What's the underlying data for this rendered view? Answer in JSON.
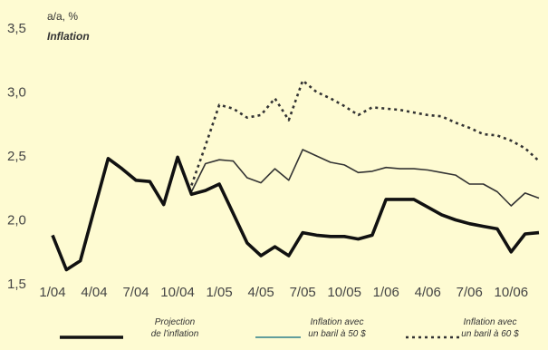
{
  "chart_data": {
    "type": "line",
    "ylabel_unit": "a/a, %",
    "ylabel": "Inflation",
    "ylim": [
      1.5,
      3.5
    ],
    "y_ticks": [
      "3,5",
      "3,0",
      "2,5",
      "2,0",
      "1,5"
    ],
    "x_ticks": [
      "1/04",
      "4/04",
      "7/04",
      "10/04",
      "1/05",
      "4/05",
      "7/05",
      "10/05",
      "1/06",
      "4/06",
      "7/06",
      "10/06"
    ],
    "grid": false,
    "legend_position": "bottom",
    "series": [
      {
        "name": "Projection de l'inflation",
        "legend_lines": [
          "Projection",
          "de l'inflation"
        ],
        "color": "#111111",
        "style": "solid-thick",
        "x": [
          0,
          1,
          2,
          3,
          4,
          5,
          6,
          7,
          8,
          9,
          10,
          11,
          12,
          13,
          14,
          15,
          16,
          17,
          18,
          19,
          20,
          21,
          22,
          23,
          24,
          25,
          26,
          27,
          28,
          29,
          30,
          31,
          32,
          33,
          34,
          35
        ],
        "values": [
          1.88,
          1.61,
          1.68,
          2.08,
          2.48,
          2.4,
          2.31,
          2.3,
          2.12,
          2.49,
          2.2,
          2.23,
          2.28,
          2.05,
          1.82,
          1.72,
          1.79,
          1.72,
          1.9,
          1.88,
          1.87,
          1.87,
          1.85,
          1.88,
          2.16,
          2.16,
          2.16,
          2.1,
          2.04,
          2.0,
          1.97,
          1.95,
          1.93,
          1.75,
          1.89,
          1.9
        ]
      },
      {
        "name": "Inflation avec un baril à 50 $",
        "legend_lines": [
          "Inflation avec",
          "un baril à 50 $"
        ],
        "color": "#333333",
        "style": "solid-thin",
        "x": [
          10,
          11,
          12,
          13,
          14,
          15,
          16,
          17,
          18,
          19,
          20,
          21,
          22,
          23,
          24,
          25,
          26,
          27,
          28,
          29,
          30,
          31,
          32,
          33,
          34,
          35
        ],
        "values": [
          2.22,
          2.44,
          2.47,
          2.46,
          2.33,
          2.29,
          2.4,
          2.31,
          2.55,
          2.5,
          2.45,
          2.43,
          2.37,
          2.38,
          2.41,
          2.4,
          2.4,
          2.39,
          2.37,
          2.35,
          2.28,
          2.28,
          2.22,
          2.11,
          2.21,
          2.17
        ]
      },
      {
        "name": "Inflation avec un baril à 60 $",
        "legend_lines": [
          "Inflation avec",
          "un baril à 60 $"
        ],
        "color": "#333333",
        "style": "dotted",
        "x": [
          10,
          11,
          12,
          13,
          14,
          15,
          16,
          17,
          18,
          19,
          20,
          21,
          22,
          23,
          24,
          25,
          26,
          27,
          28,
          29,
          30,
          31,
          32,
          33,
          34,
          35
        ],
        "values": [
          2.27,
          2.58,
          2.9,
          2.87,
          2.8,
          2.82,
          2.95,
          2.78,
          3.09,
          3.0,
          2.95,
          2.89,
          2.82,
          2.88,
          2.87,
          2.86,
          2.84,
          2.82,
          2.81,
          2.76,
          2.72,
          2.67,
          2.66,
          2.62,
          2.56,
          2.46
        ]
      }
    ]
  }
}
